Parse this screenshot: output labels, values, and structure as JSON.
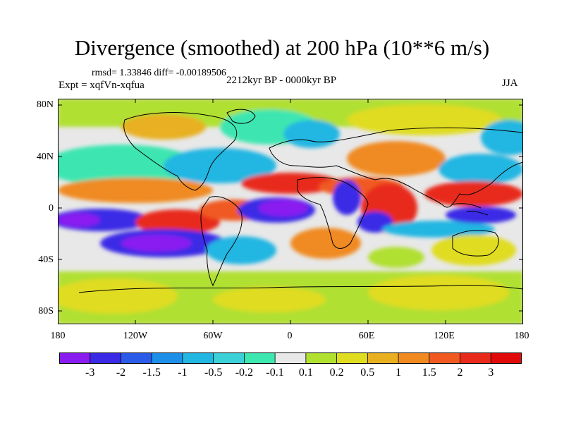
{
  "title": "Divergence (smoothed) at 200 hPa (10**6 m/s)",
  "stats": "rmsd= 1.33846 diff= -0.00189506",
  "experiment": "Expt = xqfVn-xqfua",
  "period": "2212kyr BP - 0000kyr BP",
  "season": "JJA",
  "y_ticks": [
    "80N",
    "40N",
    "0",
    "40S",
    "80S"
  ],
  "x_ticks": [
    "180",
    "120W",
    "60W",
    "0",
    "60E",
    "120E",
    "180"
  ],
  "colorbar": {
    "labels": [
      "-3",
      "-2",
      "-1.5",
      "-1",
      "-0.5",
      "-0.2",
      "-0.1",
      "0.1",
      "0.2",
      "0.5",
      "1",
      "1.5",
      "2",
      "3"
    ],
    "colors": [
      "#8a1cf0",
      "#3a2ae6",
      "#2a5ae8",
      "#1e8fe8",
      "#22b6e2",
      "#3cd0d8",
      "#3ee6b0",
      "#e8e8e8",
      "#b0e030",
      "#e0dc20",
      "#e8b020",
      "#f08a20",
      "#f05a20",
      "#e82a1a",
      "#e00a0a"
    ]
  }
}
